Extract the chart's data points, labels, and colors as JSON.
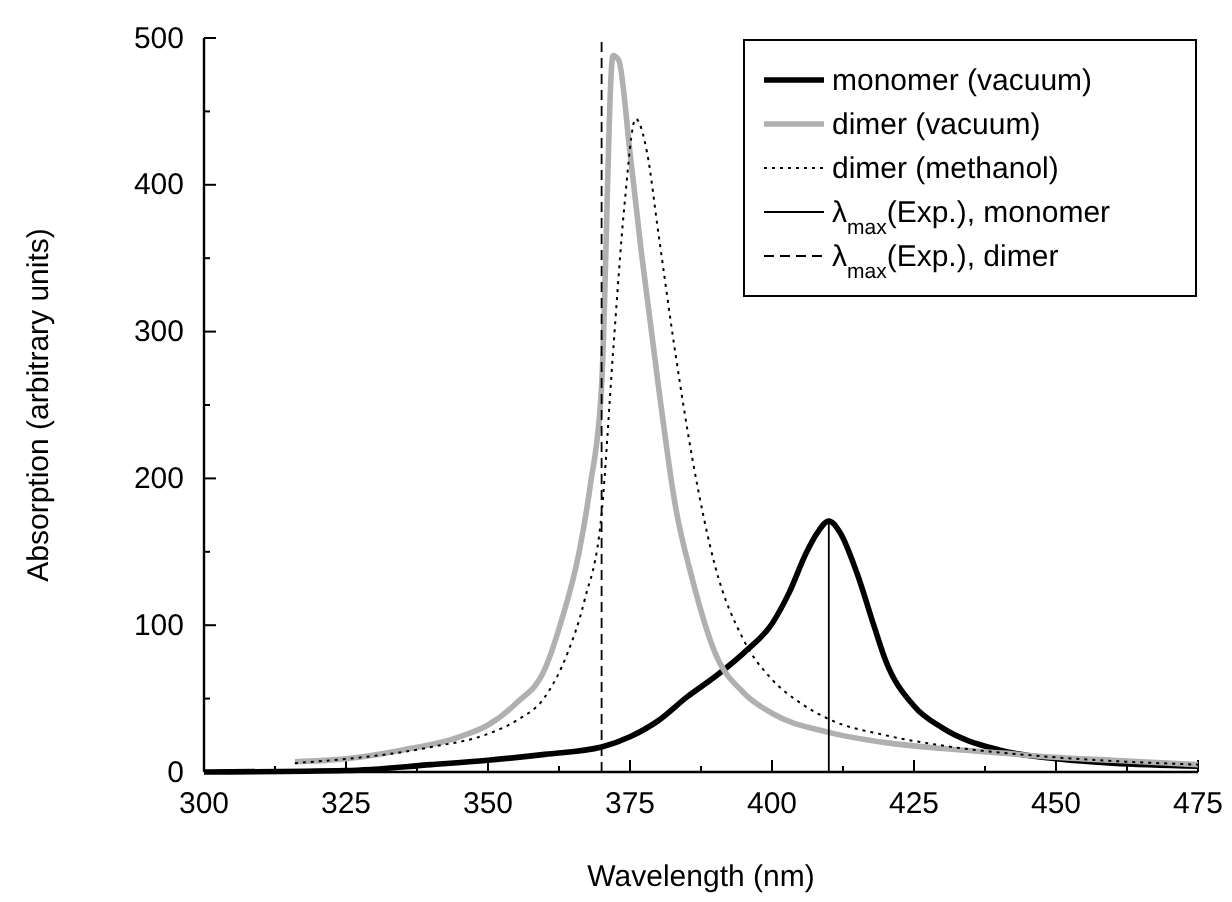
{
  "chart_data": {
    "type": "line",
    "xlabel": "Wavelength (nm)",
    "ylabel": "Absorption (arbitrary units)",
    "xlim": [
      300,
      475
    ],
    "ylim": [
      0,
      500
    ],
    "xticks": [
      300,
      {
        "value": 312.5,
        "label": null
      },
      325,
      {
        "value": 337.5,
        "label": null
      },
      350,
      {
        "value": 362.5,
        "label": null
      },
      375,
      {
        "value": 387.5,
        "label": null
      },
      400,
      {
        "value": 412.5,
        "label": null
      },
      425,
      {
        "value": 437.5,
        "label": null
      },
      450,
      {
        "value": 462.5,
        "label": null
      },
      475
    ],
    "yticks": [
      0,
      {
        "value": 50,
        "label": null
      },
      100,
      {
        "value": 150,
        "label": null
      },
      200,
      {
        "value": 250,
        "label": null
      },
      300,
      {
        "value": 350,
        "label": null
      },
      400,
      {
        "value": 450,
        "label": null
      },
      500
    ],
    "grid": false,
    "legend": "top right",
    "marker": "none",
    "series": [
      {
        "name": "monomer (vacuum)",
        "color": "#000000",
        "line_style": "solid",
        "x": [
          300,
          325,
          340,
          350,
          360,
          370,
          375,
          380,
          385,
          390,
          395,
          400,
          403,
          406,
          408,
          410,
          412,
          415,
          418,
          420,
          425,
          430,
          440,
          450,
          460,
          475
        ],
        "values": [
          0,
          1,
          5,
          8,
          12,
          17,
          24,
          35,
          51,
          65,
          81,
          101,
          122,
          149,
          163,
          171,
          163,
          135,
          99,
          76,
          45,
          30,
          15,
          9,
          6,
          4
        ]
      },
      {
        "name": "dimer (vacuum)",
        "color": "#b0b0b0",
        "line_style": "solid",
        "x": [
          316,
          325,
          335,
          345,
          350,
          355,
          360,
          363,
          366,
          368,
          370,
          372,
          373,
          375,
          377,
          380,
          383,
          386,
          390,
          395,
          400,
          410,
          420,
          430,
          440,
          450,
          460,
          475
        ],
        "values": [
          7,
          9,
          15,
          24,
          32,
          47,
          70,
          104,
          149,
          195,
          263,
          488,
          485,
          422,
          354,
          263,
          181,
          131,
          81,
          54,
          40,
          27,
          20,
          16,
          13,
          10,
          8,
          5
        ]
      },
      {
        "name": "dimer (methanol)",
        "color": "#000000",
        "line_style": "dotted",
        "x": [
          316,
          340,
          350,
          355,
          360,
          364,
          367,
          370,
          372,
          374,
          376,
          378,
          380,
          383,
          386,
          390,
          395,
          400,
          405,
          410,
          420,
          430,
          450,
          475
        ],
        "values": [
          6,
          17,
          26,
          35,
          51,
          81,
          117,
          176,
          285,
          385,
          445,
          422,
          367,
          285,
          213,
          140,
          90,
          63,
          47,
          36,
          25,
          18,
          10,
          5
        ]
      },
      {
        "name": "λ$_{max}$(Exp.), monomer",
        "color": "#000000",
        "line_style": "solid",
        "x": [
          410,
          410
        ],
        "values": [
          0,
          171
        ]
      },
      {
        "name": "λ$_{max}$(Exp.), dimer",
        "color": "#000000",
        "line_style": "dashed",
        "x": [
          370,
          370
        ],
        "values": [
          0,
          500
        ]
      }
    ]
  }
}
